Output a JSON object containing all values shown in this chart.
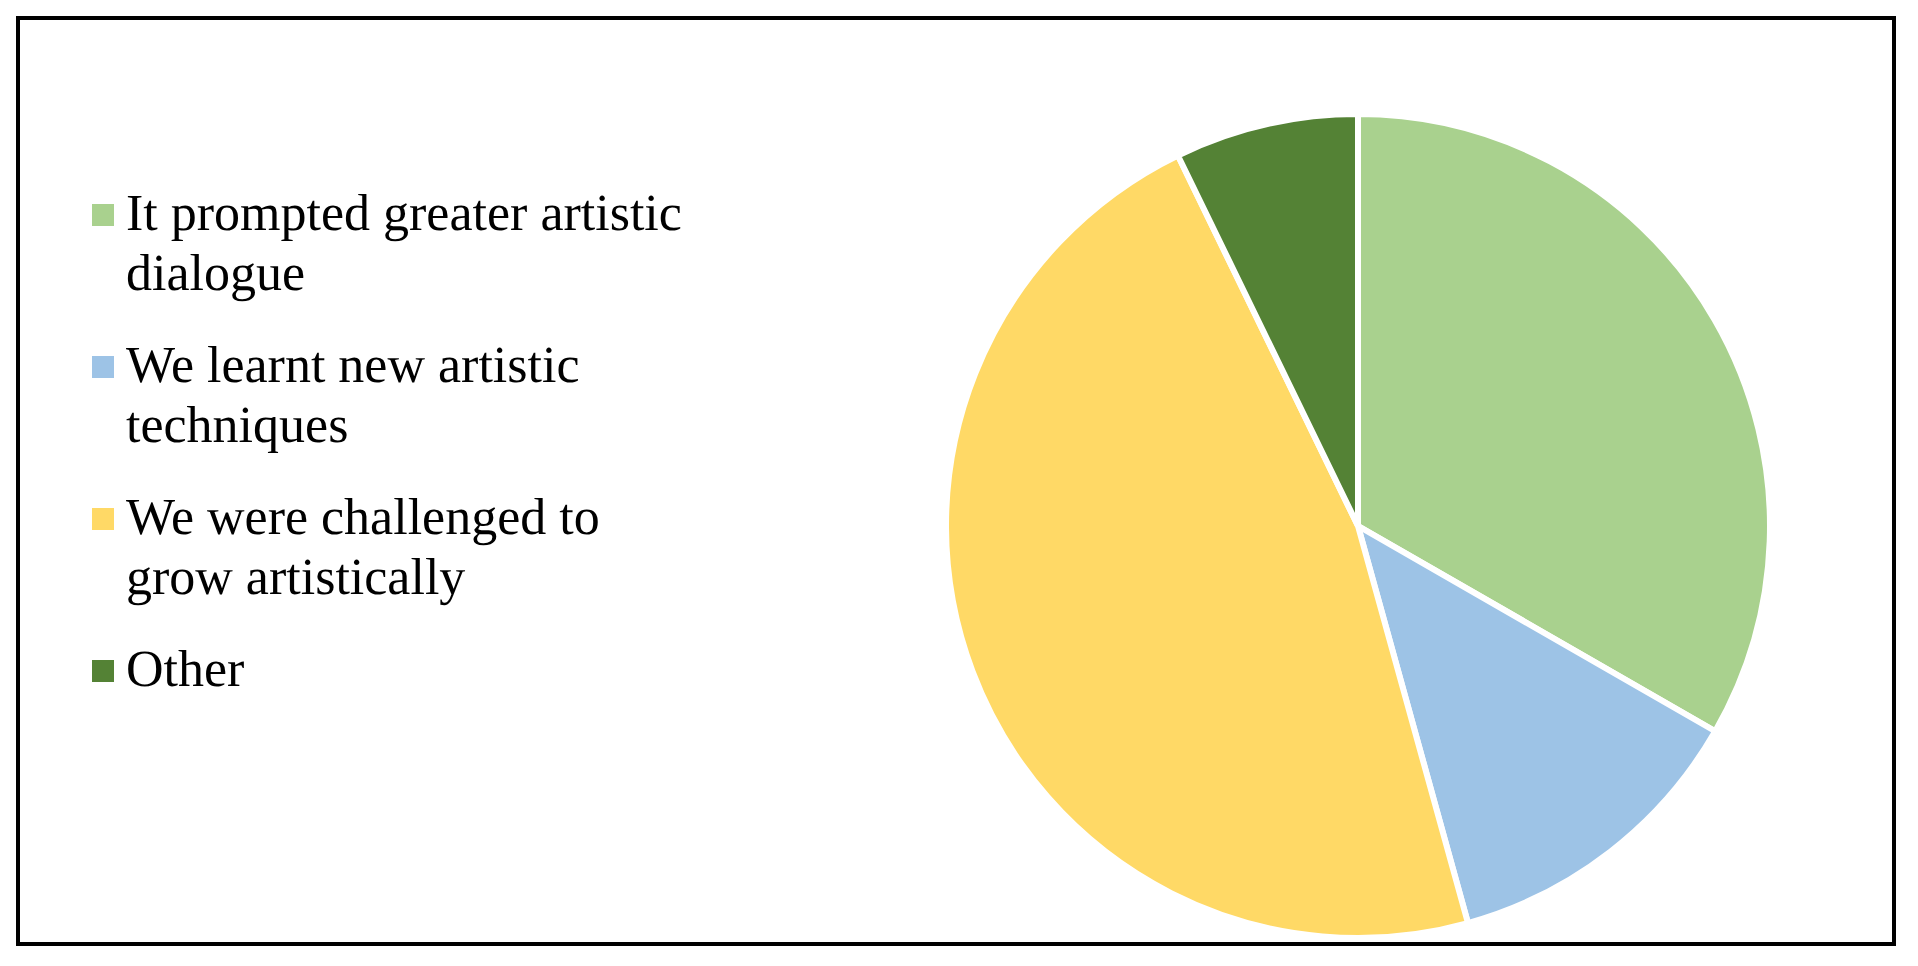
{
  "chart_data": {
    "type": "pie",
    "categories": [
      "It prompted greater artistic dialogue",
      "We learnt new artistic techniques",
      "We were challenged to grow artistically",
      "Other"
    ],
    "values": [
      33.3,
      12.4,
      47.1,
      7.2
    ],
    "colors": [
      "#a9d18e",
      "#9dc3e6",
      "#ffd966",
      "#548235"
    ],
    "legend": "left"
  }
}
